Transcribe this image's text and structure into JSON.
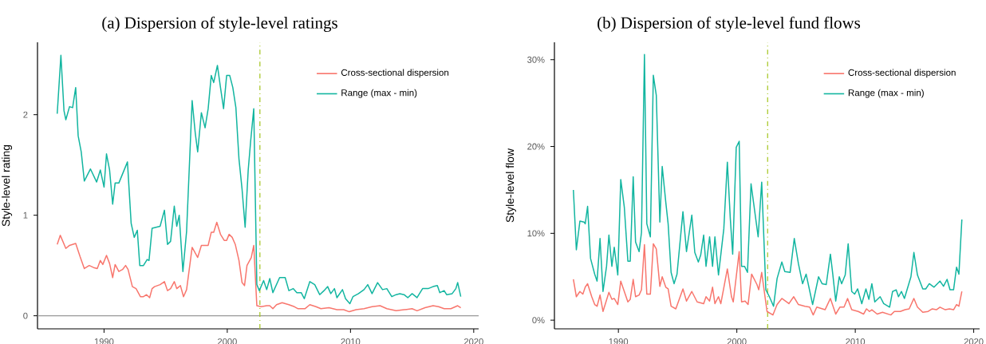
{
  "chart_data": [
    {
      "type": "line",
      "title": "(a) Dispersion of style-level ratings",
      "ylabel": "Style-level rating",
      "xlim": [
        1984.6,
        2020.4
      ],
      "ylim": [
        -0.13,
        2.72
      ],
      "xticks": [
        1990,
        2000,
        2010,
        2020
      ],
      "yticks": [
        0,
        1,
        2
      ],
      "legend": "top right",
      "marker": "none",
      "line_style": "solid",
      "grid": false,
      "ref_lines": [
        {
          "axis": "y",
          "value": 0,
          "color": "#999999"
        },
        {
          "axis": "x",
          "value": 2002.65,
          "color": "#a3c41c",
          "line_style": "dashed"
        }
      ],
      "series": [
        {
          "name": "Cross-sectional dispersion",
          "color": "#f8766d",
          "x": [
            1986.2,
            1986.45,
            1986.9,
            1987.2,
            1987.7,
            1988.05,
            1988.4,
            1988.8,
            1989.15,
            1989.45,
            1989.7,
            1989.9,
            1990.2,
            1990.45,
            1990.7,
            1990.9,
            1991.2,
            1991.5,
            1991.75,
            1991.95,
            1992.3,
            1992.6,
            1992.95,
            1993.2,
            1993.45,
            1993.7,
            1993.9,
            1994.1,
            1994.55,
            1994.9,
            1995.15,
            1995.4,
            1995.7,
            1995.9,
            1996.2,
            1996.45,
            1996.7,
            1997.15,
            1997.6,
            1997.9,
            1998.3,
            1998.45,
            1998.7,
            1998.9,
            1999.15,
            1999.45,
            1999.75,
            1999.95,
            2000.15,
            2000.4,
            2000.65,
            2000.95,
            2001.2,
            2001.4,
            2001.6,
            2001.95,
            2002.15,
            2002.4,
            2002.75,
            2003.2,
            2003.45,
            2003.7,
            2004.0,
            2004.45,
            2005.0,
            2005.45,
            2005.75,
            2006.3,
            2006.7,
            2007.2,
            2007.6,
            2008.25,
            2008.9,
            2009.45,
            2009.9,
            2010.45,
            2011.1,
            2011.75,
            2012.4,
            2012.95,
            2013.7,
            2014.35,
            2015.0,
            2015.4,
            2016.05,
            2016.7,
            2017.15,
            2017.6,
            2018.15,
            2018.7,
            2018.95
          ],
          "values": [
            0.71,
            0.8,
            0.67,
            0.7,
            0.72,
            0.59,
            0.47,
            0.5,
            0.48,
            0.47,
            0.55,
            0.51,
            0.6,
            0.52,
            0.38,
            0.51,
            0.44,
            0.46,
            0.5,
            0.46,
            0.29,
            0.27,
            0.19,
            0.19,
            0.21,
            0.18,
            0.27,
            0.29,
            0.31,
            0.34,
            0.25,
            0.27,
            0.34,
            0.27,
            0.3,
            0.19,
            0.26,
            0.68,
            0.58,
            0.7,
            0.7,
            0.7,
            0.83,
            0.83,
            0.93,
            0.81,
            0.75,
            0.75,
            0.81,
            0.78,
            0.71,
            0.55,
            0.33,
            0.3,
            0.5,
            0.58,
            0.7,
            0.1,
            0.09,
            0.1,
            0.1,
            0.07,
            0.11,
            0.13,
            0.11,
            0.09,
            0.07,
            0.07,
            0.11,
            0.09,
            0.07,
            0.08,
            0.06,
            0.06,
            0.04,
            0.06,
            0.07,
            0.09,
            0.1,
            0.07,
            0.05,
            0.06,
            0.07,
            0.05,
            0.08,
            0.1,
            0.09,
            0.07,
            0.07,
            0.1,
            0.08
          ]
        },
        {
          "name": "Range (max - min)",
          "color": "#12b5a0",
          "x": [
            1986.2,
            1986.5,
            1986.75,
            1986.9,
            1987.2,
            1987.45,
            1987.7,
            1987.9,
            1988.15,
            1988.4,
            1988.9,
            1989.4,
            1989.7,
            1990.0,
            1990.2,
            1990.45,
            1990.7,
            1990.9,
            1991.2,
            1991.9,
            1992.2,
            1992.45,
            1992.7,
            1992.9,
            1993.2,
            1993.5,
            1993.65,
            1993.9,
            1994.55,
            1994.9,
            1995.15,
            1995.4,
            1995.7,
            1995.9,
            1996.1,
            1996.4,
            1996.7,
            1997.15,
            1997.4,
            1997.6,
            1997.9,
            1998.2,
            1998.45,
            1998.7,
            1998.9,
            1999.2,
            1999.45,
            1999.7,
            1999.95,
            2000.2,
            2000.45,
            2000.7,
            2000.95,
            2001.2,
            2001.45,
            2001.7,
            2001.9,
            2002.15,
            2002.4,
            2002.6,
            2002.95,
            2003.2,
            2003.45,
            2003.7,
            2004.25,
            2004.7,
            2005.0,
            2005.35,
            2005.65,
            2006.0,
            2006.25,
            2006.7,
            2007.1,
            2007.5,
            2007.85,
            2008.15,
            2008.4,
            2008.7,
            2008.9,
            2009.35,
            2009.6,
            2009.95,
            2010.2,
            2010.65,
            2011.1,
            2011.4,
            2011.75,
            2012.2,
            2012.6,
            2012.95,
            2013.35,
            2013.7,
            2014.0,
            2014.35,
            2014.65,
            2015.0,
            2015.4,
            2015.85,
            2016.3,
            2016.7,
            2017.05,
            2017.25,
            2017.6,
            2017.8,
            2018.25,
            2018.55,
            2018.7,
            2018.95
          ],
          "values": [
            2.01,
            2.59,
            2.04,
            1.95,
            2.08,
            2.07,
            2.27,
            1.79,
            1.63,
            1.34,
            1.46,
            1.33,
            1.45,
            1.28,
            1.61,
            1.45,
            1.11,
            1.32,
            1.32,
            1.53,
            0.92,
            0.78,
            0.85,
            0.5,
            0.5,
            0.56,
            0.55,
            0.87,
            0.89,
            1.05,
            0.71,
            0.74,
            1.09,
            0.89,
            1.0,
            0.44,
            0.84,
            2.14,
            1.82,
            1.63,
            2.02,
            1.87,
            2.06,
            2.39,
            2.32,
            2.49,
            2.27,
            2.06,
            2.39,
            2.39,
            2.27,
            2.07,
            1.56,
            1.26,
            0.88,
            1.45,
            1.74,
            2.06,
            0.31,
            0.25,
            0.35,
            0.26,
            0.37,
            0.23,
            0.38,
            0.38,
            0.25,
            0.27,
            0.23,
            0.23,
            0.17,
            0.34,
            0.31,
            0.21,
            0.25,
            0.29,
            0.22,
            0.27,
            0.18,
            0.26,
            0.17,
            0.12,
            0.19,
            0.22,
            0.26,
            0.31,
            0.22,
            0.33,
            0.26,
            0.27,
            0.19,
            0.21,
            0.22,
            0.21,
            0.18,
            0.22,
            0.18,
            0.27,
            0.27,
            0.29,
            0.3,
            0.23,
            0.25,
            0.21,
            0.22,
            0.27,
            0.33,
            0.19
          ]
        }
      ]
    },
    {
      "type": "line",
      "title": "(b) Dispersion of style-level fund flows",
      "ylabel": "Style-level flow",
      "xlim": [
        1984.6,
        2020.5
      ],
      "ylim": [
        -1,
        32
      ],
      "xticks": [
        1990,
        2000,
        2010,
        2020
      ],
      "yticks": [
        {
          "value": 0,
          "label": "0%"
        },
        {
          "value": 10,
          "label": "10%"
        },
        {
          "value": 20,
          "label": "20%"
        },
        {
          "value": 30,
          "label": "30%"
        }
      ],
      "legend": "top right",
      "marker": "none",
      "line_style": "solid",
      "grid": false,
      "ref_lines": [
        {
          "axis": "x",
          "value": 2002.6,
          "color": "#a3c41c",
          "line_style": "dashed"
        }
      ],
      "series": [
        {
          "name": "Cross-sectional dispersion",
          "color": "#f8766d",
          "x": [
            1986.2,
            1986.45,
            1986.75,
            1987.0,
            1987.2,
            1987.4,
            1987.75,
            1988.0,
            1988.2,
            1988.45,
            1988.7,
            1989.2,
            1989.45,
            1989.65,
            1989.95,
            1990.2,
            1990.8,
            1991.0,
            1991.25,
            1991.45,
            1991.75,
            1991.95,
            1992.2,
            1992.4,
            1992.7,
            1992.95,
            1993.2,
            1993.5,
            1993.7,
            1994.0,
            1994.2,
            1994.45,
            1994.85,
            1995.45,
            1995.75,
            1996.2,
            1996.65,
            1997.2,
            1997.4,
            1997.7,
            1997.95,
            1998.15,
            1998.45,
            1998.65,
            1999.2,
            1999.55,
            1999.7,
            2000.2,
            2000.4,
            2000.7,
            2000.95,
            2001.25,
            2001.7,
            2001.85,
            2002.1,
            2002.55,
            2003.05,
            2003.4,
            2003.8,
            2004.4,
            2004.8,
            2005.2,
            2005.75,
            2006.15,
            2006.45,
            2006.75,
            2007.45,
            2007.9,
            2008.35,
            2008.7,
            2009.05,
            2009.35,
            2009.7,
            2010.25,
            2010.7,
            2010.95,
            2011.2,
            2011.4,
            2011.85,
            2012.3,
            2013.0,
            2013.3,
            2013.8,
            2014.2,
            2014.55,
            2014.95,
            2015.25,
            2015.7,
            2016.15,
            2016.5,
            2016.85,
            2017.15,
            2017.6,
            2017.95,
            2018.3,
            2018.55,
            2018.75,
            2019.0
          ],
          "values": [
            4.7,
            2.7,
            3.3,
            3.0,
            3.8,
            4.2,
            2.7,
            1.8,
            1.6,
            2.9,
            1.0,
            3.2,
            2.4,
            2.5,
            1.8,
            4.5,
            2.1,
            2.4,
            4.7,
            2.7,
            2.9,
            3.5,
            8.7,
            3.0,
            3.0,
            8.8,
            8.2,
            3.9,
            5.0,
            3.8,
            3.6,
            1.6,
            1.3,
            3.6,
            2.2,
            3.3,
            2.1,
            1.9,
            2.7,
            2.2,
            3.8,
            1.9,
            2.7,
            1.9,
            5.9,
            2.7,
            2.1,
            7.9,
            2.1,
            2.2,
            1.8,
            5.3,
            4.1,
            3.5,
            5.5,
            1.0,
            0.6,
            1.8,
            2.5,
            1.9,
            2.7,
            1.8,
            1.6,
            1.5,
            0.6,
            1.5,
            1.2,
            2.5,
            0.7,
            1.5,
            1.5,
            2.5,
            1.2,
            1.0,
            0.7,
            1.3,
            1.0,
            1.2,
            0.7,
            0.9,
            0.6,
            1.0,
            1.0,
            1.2,
            1.3,
            2.5,
            1.5,
            0.9,
            1.0,
            1.3,
            1.2,
            1.5,
            1.2,
            1.3,
            1.2,
            1.8,
            1.6,
            3.3
          ]
        },
        {
          "name": "Range (max - min)",
          "color": "#12b5a0",
          "x": [
            1986.2,
            1986.45,
            1986.75,
            1987.1,
            1987.2,
            1987.4,
            1987.65,
            1988.0,
            1988.2,
            1988.45,
            1988.7,
            1989.0,
            1989.2,
            1989.45,
            1989.65,
            1989.95,
            1990.2,
            1990.5,
            1990.8,
            1991.0,
            1991.25,
            1991.45,
            1991.75,
            1991.95,
            1992.2,
            1992.4,
            1992.7,
            1992.95,
            1993.2,
            1993.5,
            1993.7,
            1994.0,
            1994.2,
            1994.45,
            1994.7,
            1994.95,
            1995.45,
            1995.75,
            1996.2,
            1996.45,
            1996.75,
            1996.95,
            1997.2,
            1997.4,
            1997.7,
            1997.95,
            1998.15,
            1998.45,
            1998.9,
            1999.2,
            1999.45,
            1999.65,
            1999.95,
            2000.2,
            2000.4,
            2000.65,
            2000.9,
            2001.2,
            2001.8,
            2002.1,
            2002.45,
            2002.75,
            2003.1,
            2003.4,
            2003.8,
            2004.05,
            2004.5,
            2004.85,
            2005.2,
            2005.55,
            2005.85,
            2006.4,
            2006.9,
            2007.2,
            2007.55,
            2007.9,
            2008.1,
            2008.35,
            2008.65,
            2008.85,
            2009.15,
            2009.4,
            2009.7,
            2009.95,
            2010.2,
            2010.55,
            2010.9,
            2011.15,
            2011.4,
            2011.65,
            2012.1,
            2012.4,
            2012.9,
            2013.15,
            2013.45,
            2013.65,
            2013.9,
            2014.15,
            2014.7,
            2014.95,
            2015.25,
            2015.7,
            2015.95,
            2016.25,
            2016.65,
            2017.15,
            2017.45,
            2017.75,
            2018.0,
            2018.3,
            2018.55,
            2018.75,
            2019.0
          ],
          "values": [
            15.0,
            8.1,
            11.4,
            11.3,
            11.1,
            13.1,
            7.1,
            5.3,
            4.5,
            9.4,
            3.3,
            6.2,
            9.8,
            6.2,
            8.4,
            5.2,
            16.2,
            13.0,
            6.8,
            6.8,
            16.5,
            9.0,
            7.9,
            10.1,
            30.6,
            11.1,
            9.6,
            28.2,
            25.9,
            11.3,
            17.7,
            13.6,
            11.1,
            5.5,
            4.2,
            5.3,
            12.5,
            7.9,
            12.1,
            7.8,
            6.7,
            7.5,
            9.8,
            6.2,
            9.6,
            6.2,
            9.6,
            5.2,
            10.5,
            18.2,
            11.7,
            7.6,
            19.9,
            20.6,
            6.2,
            6.2,
            5.5,
            15.7,
            9.6,
            15.9,
            3.5,
            2.7,
            1.6,
            4.8,
            6.7,
            5.6,
            5.5,
            9.4,
            6.5,
            4.2,
            5.3,
            1.8,
            5.0,
            4.2,
            4.1,
            7.6,
            5.3,
            2.2,
            5.0,
            4.2,
            5.2,
            8.8,
            3.3,
            3.0,
            3.6,
            1.9,
            3.6,
            2.4,
            4.2,
            2.1,
            2.7,
            1.9,
            1.5,
            3.3,
            3.5,
            2.7,
            3.3,
            2.5,
            5.0,
            7.8,
            5.2,
            3.6,
            3.6,
            4.2,
            3.8,
            4.5,
            3.9,
            4.7,
            3.5,
            3.5,
            6.1,
            5.3,
            11.6
          ]
        }
      ]
    }
  ]
}
